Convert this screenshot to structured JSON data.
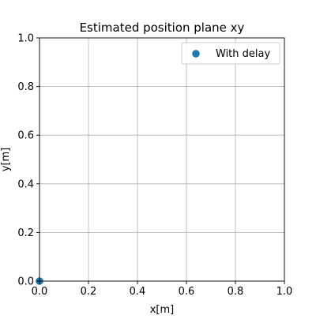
{
  "chart_data": {
    "type": "scatter",
    "title": "Estimated position plane xy",
    "xlabel": "x[m]",
    "ylabel": "y[m]",
    "xlim": [
      0.0,
      1.0
    ],
    "ylim": [
      0.0,
      1.0
    ],
    "xticks": [
      "0.0",
      "0.2",
      "0.4",
      "0.6",
      "0.8",
      "1.0"
    ],
    "yticks": [
      "0.0",
      "0.2",
      "0.4",
      "0.6",
      "0.8",
      "1.0"
    ],
    "grid": true,
    "legend": "top-right",
    "series": [
      {
        "name": "With delay",
        "color": "#1f77b4",
        "x": [
          0.0
        ],
        "y": [
          0.0
        ]
      }
    ]
  }
}
